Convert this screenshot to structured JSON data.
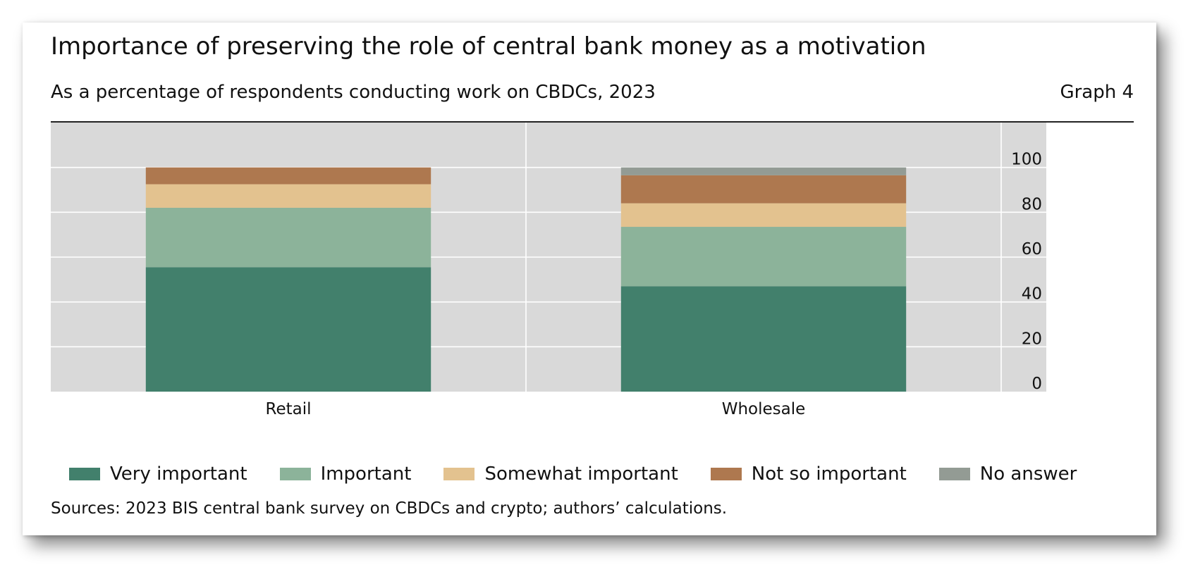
{
  "header": {
    "title": "Importance of preserving the role of central bank money as a motivation",
    "subtitle": "As a percentage of respondents conducting work on CBDCs, 2023",
    "graph_label": "Graph 4"
  },
  "footer": {
    "sources": "Sources: 2023 BIS central bank survey on CBDCs and crypto; authors’ calculations."
  },
  "colors": {
    "plot_background": "#d9d9d9",
    "gridline": "#ffffff"
  },
  "chart_data": {
    "type": "bar",
    "stacked": true,
    "categories": [
      "Retail",
      "Wholesale"
    ],
    "series": [
      {
        "name": "Very important",
        "color": "#42806c",
        "values": [
          55.5,
          47
        ]
      },
      {
        "name": "Important",
        "color": "#8cb39a",
        "values": [
          26.5,
          26.5
        ]
      },
      {
        "name": "Somewhat important",
        "color": "#e3c28f",
        "values": [
          10.5,
          10.5
        ]
      },
      {
        "name": "Not so important",
        "color": "#ae784f",
        "values": [
          7.5,
          12.5
        ]
      },
      {
        "name": "No answer",
        "color": "#939b94",
        "values": [
          0,
          3.5
        ]
      }
    ],
    "ylim": [
      0,
      120
    ],
    "yticks": [
      0,
      20,
      40,
      60,
      80,
      100
    ],
    "y_axis_side": "right",
    "grid": true,
    "legend_position": "bottom"
  }
}
